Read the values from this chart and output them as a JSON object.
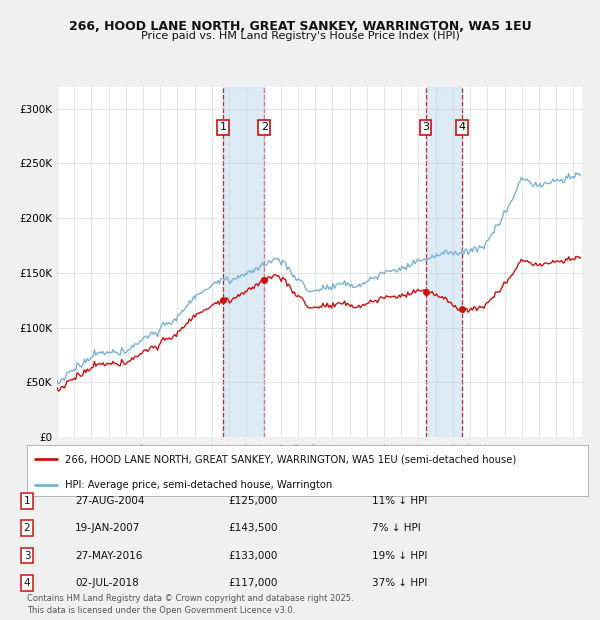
{
  "title_line1": "266, HOOD LANE NORTH, GREAT SANKEY, WARRINGTON, WA5 1EU",
  "title_line2": "Price paid vs. HM Land Registry's House Price Index (HPI)",
  "xlim_start": 1995.0,
  "xlim_end": 2025.5,
  "ylim_min": 0,
  "ylim_max": 320000,
  "yticks": [
    0,
    50000,
    100000,
    150000,
    200000,
    250000,
    300000
  ],
  "ytick_labels": [
    "£0",
    "£50K",
    "£100K",
    "£150K",
    "£200K",
    "£250K",
    "£300K"
  ],
  "xticks": [
    1995,
    1996,
    1997,
    1998,
    1999,
    2000,
    2001,
    2002,
    2003,
    2004,
    2005,
    2006,
    2007,
    2008,
    2009,
    2010,
    2011,
    2012,
    2013,
    2014,
    2015,
    2016,
    2017,
    2018,
    2019,
    2020,
    2021,
    2022,
    2023,
    2024,
    2025
  ],
  "hpi_color": "#7ab3d4",
  "price_color": "#cc1111",
  "bg_color": "#f0f0f0",
  "plot_bg": "#ffffff",
  "vline_color": "#cc1111",
  "shade_color": "#d6e8f5",
  "legend_label_price": "266, HOOD LANE NORTH, GREAT SANKEY, WARRINGTON, WA5 1EU (semi-detached house)",
  "legend_label_hpi": "HPI: Average price, semi-detached house, Warrington",
  "transactions": [
    {
      "num": 1,
      "date_x": 2004.65,
      "price": 125000,
      "label": "27-AUG-2004",
      "price_str": "£125,000",
      "hpi_diff": "11% ↓ HPI"
    },
    {
      "num": 2,
      "date_x": 2007.05,
      "price": 143500,
      "label": "19-JAN-2007",
      "price_str": "£143,500",
      "hpi_diff": "7% ↓ HPI"
    },
    {
      "num": 3,
      "date_x": 2016.41,
      "price": 133000,
      "label": "27-MAY-2016",
      "price_str": "£133,000",
      "hpi_diff": "19% ↓ HPI"
    },
    {
      "num": 4,
      "date_x": 2018.5,
      "price": 117000,
      "label": "02-JUL-2018",
      "price_str": "£117,000",
      "hpi_diff": "37% ↓ HPI"
    }
  ],
  "footnote": "Contains HM Land Registry data © Crown copyright and database right 2025.\nThis data is licensed under the Open Government Licence v3.0."
}
